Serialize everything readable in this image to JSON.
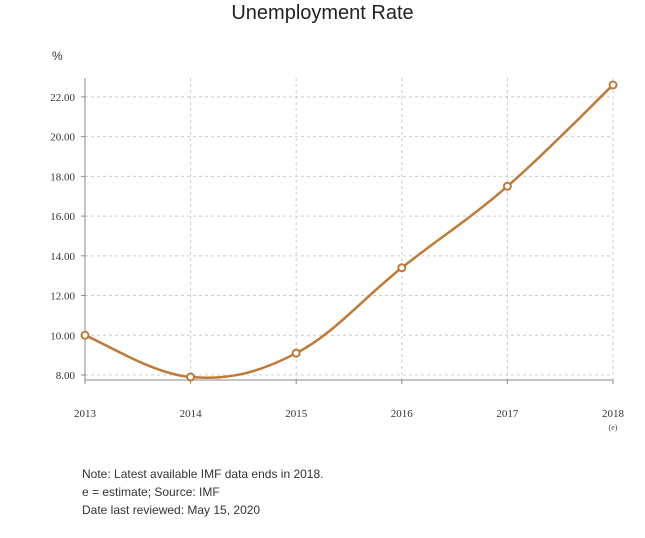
{
  "chart_data": {
    "type": "line",
    "title": "Unemployment Rate",
    "ylabel": "%",
    "xlabel": "",
    "x": [
      "2013",
      "2014",
      "2015",
      "2016",
      "2017",
      "2018"
    ],
    "x_tick_labels": [
      "2013",
      "2014",
      "2015",
      "2016",
      "2017",
      "2018"
    ],
    "x_annotations": {
      "2018": "(e)"
    },
    "series": [
      {
        "values": [
          10.0,
          7.9,
          9.1,
          13.4,
          17.5,
          22.6
        ]
      }
    ],
    "yticks": [
      "8.00",
      "10.00",
      "12.00",
      "14.00",
      "16.00",
      "18.00",
      "20.00",
      "22.00"
    ],
    "ylim": [
      7.75,
      22.95
    ],
    "grid": true,
    "line_color": "#c07a36"
  },
  "notes": [
    "Note: Latest available IMF data ends in 2018.",
    "e = estimate; Source: IMF",
    "Date last reviewed: May 15, 2020"
  ]
}
